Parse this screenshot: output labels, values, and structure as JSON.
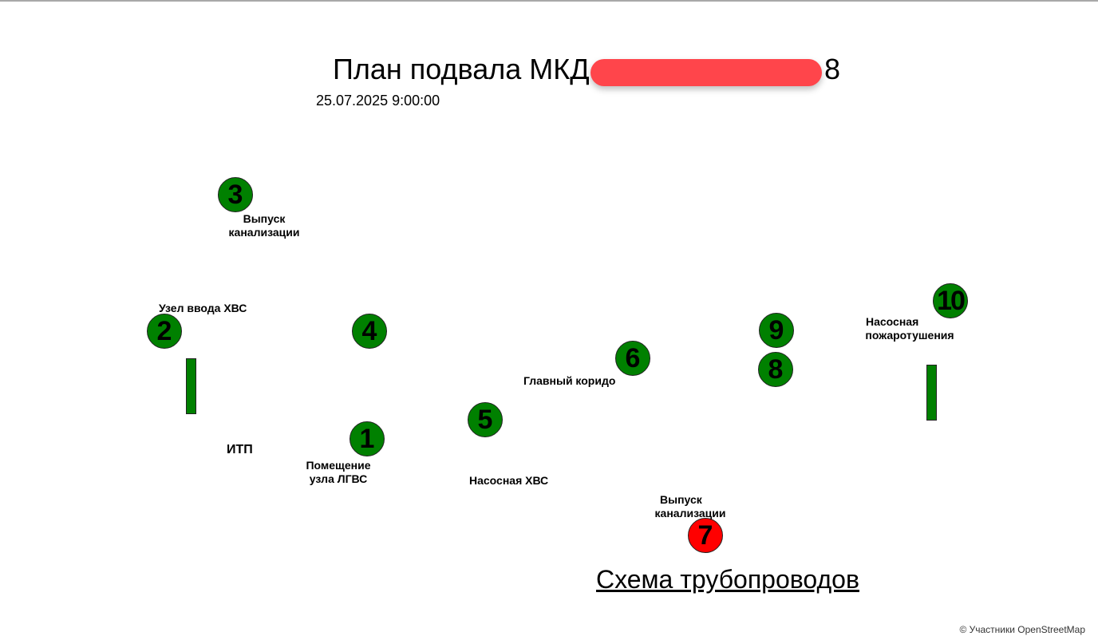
{
  "header": {
    "title": "План подвала МКД",
    "title_suffix": "8",
    "datetime": "25.07.2025 9:00:00"
  },
  "markers": [
    {
      "id": "1",
      "status": "ok"
    },
    {
      "id": "2",
      "status": "ok"
    },
    {
      "id": "3",
      "status": "ok"
    },
    {
      "id": "4",
      "status": "ok"
    },
    {
      "id": "5",
      "status": "ok"
    },
    {
      "id": "6",
      "status": "ok"
    },
    {
      "id": "7",
      "status": "alarm"
    },
    {
      "id": "8",
      "status": "ok"
    },
    {
      "id": "9",
      "status": "ok"
    },
    {
      "id": "10",
      "status": "ok"
    }
  ],
  "labels": {
    "vypusk_1_line1": "Выпуск",
    "vypusk_1_line2": "канализации",
    "uzel_vvoda": "Узел ввода ХВС",
    "itp": "ИТП",
    "pomeshchenie_line1": "Помещение",
    "pomeshchenie_line2": "узла ЛГВС",
    "glavny_koridor": "Главный коридо",
    "nasosnaya_hvs": "Насосная ХВС",
    "vypusk_2_line1": "Выпуск",
    "vypusk_2_line2": "канализации",
    "nasosnaya_pozh_line1": "Насосная",
    "nasosnaya_pozh_line2": "пожаротушения"
  },
  "link": {
    "label": "Схема трубопроводов"
  },
  "attribution": "© Участники OpenStreetMap",
  "colors": {
    "ok": "#008000",
    "alarm": "#ff0000",
    "redaction": "#ff454b"
  }
}
